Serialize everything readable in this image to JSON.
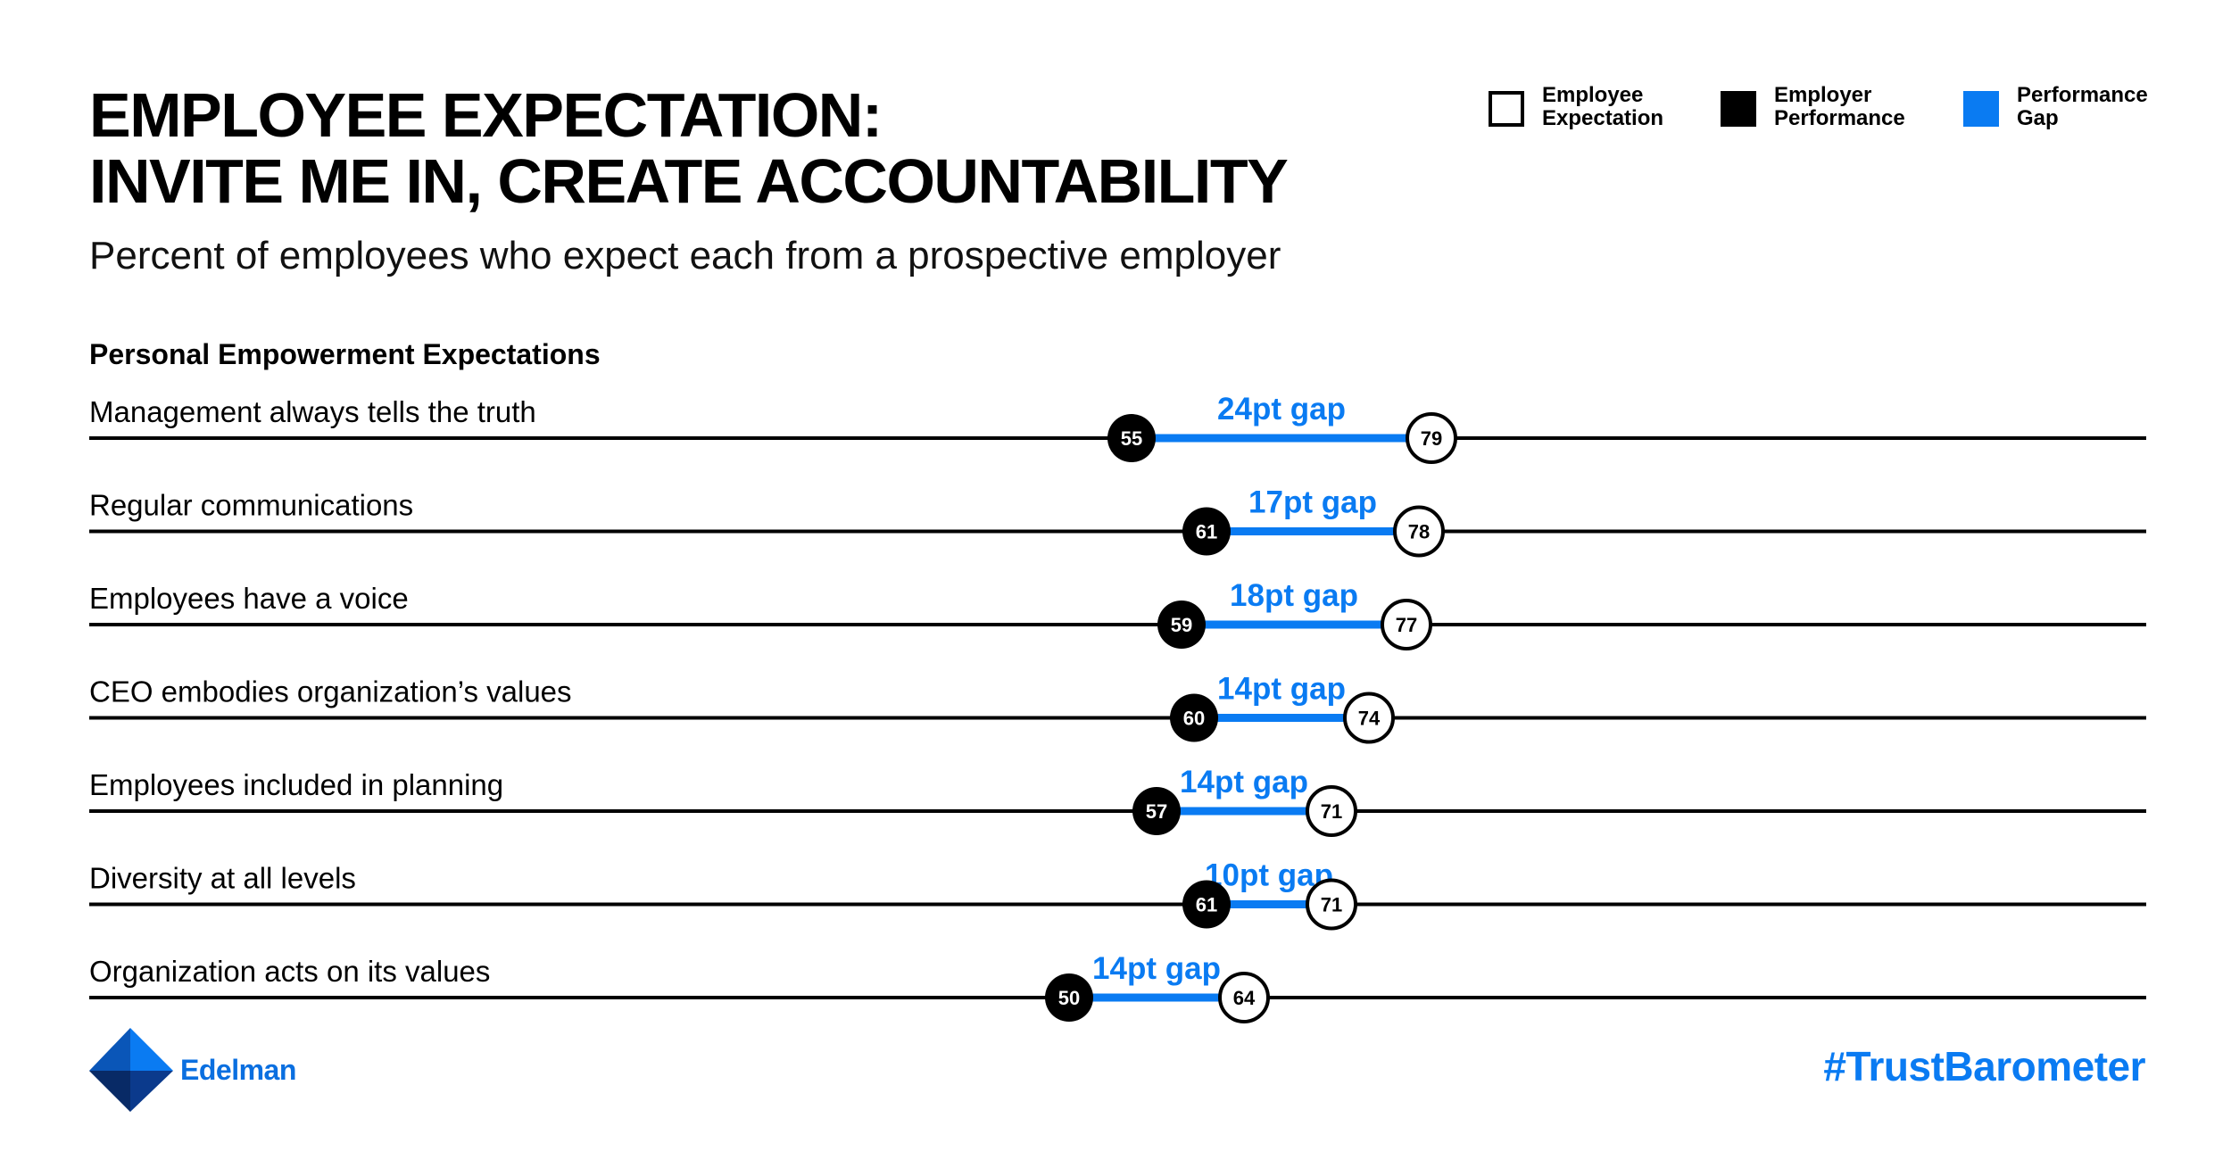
{
  "header": {
    "title_line1": "EMPLOYEE EXPECTATION:",
    "title_line2": "INVITE ME IN, CREATE ACCOUNTABILITY",
    "subtitle": "Percent of employees who expect each from a prospective employer",
    "section": "Personal Empowerment Expectations"
  },
  "legend": {
    "expectation": "Employee Expectation",
    "performance": "Employer Performance",
    "gap": "Performance Gap"
  },
  "colors": {
    "gap": "#0a7bf2",
    "performance": "#000000",
    "expectation_fill": "#ffffff",
    "axis": "#000000"
  },
  "chart_data": {
    "type": "dumbbell",
    "title": "",
    "series": [
      {
        "name": "Employee Expectation",
        "values": [
          79,
          78,
          77,
          74,
          71,
          71,
          64
        ]
      },
      {
        "name": "Employer Performance",
        "values": [
          55,
          61,
          59,
          60,
          57,
          61,
          50
        ]
      }
    ],
    "categories": [
      "Management always tells the truth",
      "Regular communications",
      "Employees have a voice",
      "CEO embodies organization’s values",
      "Employees included in planning",
      "Diversity at all levels",
      "Organization acts on its values"
    ],
    "rows": [
      {
        "label": "Management always tells the truth",
        "performance": 55,
        "expectation": 79,
        "gap_label": "24pt gap"
      },
      {
        "label": "Regular communications",
        "performance": 61,
        "expectation": 78,
        "gap_label": "17pt gap"
      },
      {
        "label": "Employees have a voice",
        "performance": 59,
        "expectation": 77,
        "gap_label": "18pt gap"
      },
      {
        "label": "CEO embodies organization’s values",
        "performance": 60,
        "expectation": 74,
        "gap_label": "14pt gap"
      },
      {
        "label": "Employees included in planning",
        "performance": 57,
        "expectation": 71,
        "gap_label": "14pt gap"
      },
      {
        "label": "Diversity at all levels",
        "performance": 61,
        "expectation": 71,
        "gap_label": "10pt gap"
      },
      {
        "label": "Organization acts on its values",
        "performance": 50,
        "expectation": 64,
        "gap_label": "14pt gap"
      }
    ]
  },
  "footer": {
    "brand": "Edelman",
    "hashtag": "#TrustBarometer"
  }
}
